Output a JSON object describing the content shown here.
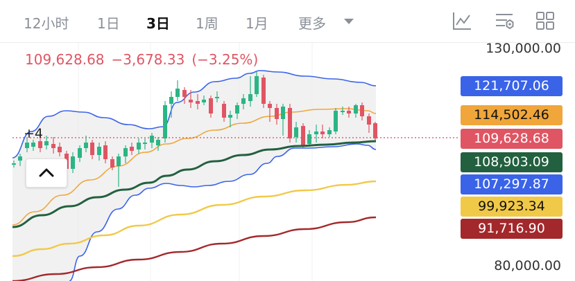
{
  "timeframes": [
    {
      "label": "12小时",
      "active": false
    },
    {
      "label": "1日",
      "active": false
    },
    {
      "label": "3日",
      "active": true
    },
    {
      "label": "1周",
      "active": false
    },
    {
      "label": "1月",
      "active": false
    }
  ],
  "more_label": "更多",
  "toolbar_icons": [
    "indicator-chart-icon",
    "settings-sliders-icon",
    "layout-grid-icon"
  ],
  "ohlc": {
    "last": "109,628.68",
    "change": "−3,678.33",
    "change_pct": "(−3.25%)",
    "color": "#e05563"
  },
  "axis": {
    "top_label": "130,000.00",
    "bottom_label": "80,000.00",
    "max": 130000,
    "min": 80000
  },
  "price_tags": [
    {
      "name": "bollinger-upper",
      "text": "121,707.06",
      "value": 121707.06,
      "bg": "#3a63e8",
      "fg": "#ffffff"
    },
    {
      "name": "ma-orange",
      "text": "114,502.46",
      "value": 114502.46,
      "bg": "#f0a63a",
      "fg": "#111111"
    },
    {
      "name": "last-price",
      "text": "109,628.68",
      "value": 109628.68,
      "bg": "#e05563",
      "fg": "#ffffff"
    },
    {
      "name": "ma-green",
      "text": "108,903.09",
      "value": 108903.09,
      "bg": "#23603f",
      "fg": "#ffffff"
    },
    {
      "name": "bollinger-lower",
      "text": "107,297.87",
      "value": 107297.87,
      "bg": "#3a63e8",
      "fg": "#ffffff"
    },
    {
      "name": "ma-yellow",
      "text": "99,923.34",
      "value": 99923.34,
      "bg": "#f1c948",
      "fg": "#111111"
    },
    {
      "name": "ma-red",
      "text": "91,716.90",
      "value": 91716.9,
      "bg": "#a3282b",
      "fg": "#ffffff"
    }
  ],
  "marker_label": "+4",
  "colors": {
    "up": "#2bb585",
    "down": "#e05563",
    "band_fill": "#ececec",
    "bollinger": "#3a63e8",
    "ma_orange": "#f0a63a",
    "ma_green": "#23603f",
    "ma_yellow": "#f1c948",
    "ma_red": "#a3282b"
  }
}
